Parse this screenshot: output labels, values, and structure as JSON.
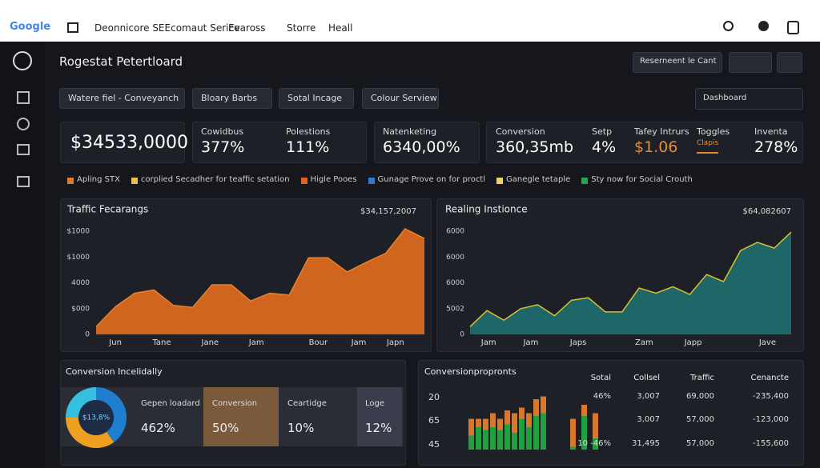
{
  "topbar": {
    "logo": "Google",
    "nav": [
      "Deonnicore SEEcomaut Serice",
      "Evaross",
      "Storre",
      "Heall"
    ]
  },
  "header": {
    "title": "Rogestat Petertloard",
    "button": "Reserneent le Cant"
  },
  "filters": [
    "Watere fiel - Conveyanch",
    "Bloary Barbs",
    "Sotal Incage",
    "Colour Serview"
  ],
  "search": "Dashboard",
  "kpi_total": "$34533,0000",
  "kpis": [
    {
      "label": "Cowidbus",
      "value": "377%"
    },
    {
      "label": "Polestions",
      "value": "111%"
    },
    {
      "label": "Natenketing",
      "value": "6340,00%"
    },
    {
      "label": "Conversion",
      "value": "360,35mb"
    },
    {
      "label": "Setp",
      "value": "4%"
    },
    {
      "label": "Tafey Intrurs",
      "value": "$1.06"
    },
    {
      "label": "Toggles",
      "value": "Clapis"
    },
    {
      "label": "Inventa",
      "value": "278%"
    }
  ],
  "legend": [
    {
      "name": "Apling STX",
      "color": "#e07a2a"
    },
    {
      "name": "corplied Secadher for teaffic setation",
      "color": "#e8c04a"
    },
    {
      "name": "Higle Pooes",
      "color": "#e0621e"
    },
    {
      "name": "Gunage Prove on for proctl",
      "color": "#2a7ad0"
    },
    {
      "name": "Ganegle tetaple",
      "color": "#f0d070"
    },
    {
      "name": "Sty now for Social Crouth",
      "color": "#2aa050"
    }
  ],
  "chart_data": [
    {
      "type": "area",
      "title": "Traffic Fecarangs",
      "total": "$34,157,2007",
      "color": "#d9691f",
      "line_color": "#e8822e",
      "x": [
        0,
        1,
        2,
        3,
        4,
        5,
        6,
        7,
        8,
        9,
        10,
        11,
        12,
        13,
        14,
        15,
        16,
        17
      ],
      "values": [
        600,
        2150,
        3200,
        3450,
        2250,
        2100,
        3850,
        3850,
        2600,
        3200,
        3050,
        5950,
        5950,
        4850,
        5600,
        6300,
        8200,
        7450
      ],
      "xlim": [
        0,
        17
      ],
      "xticks": [
        {
          "value": 1,
          "label": "Jun"
        },
        {
          "value": 3.4,
          "label": "Tane"
        },
        {
          "value": 5.9,
          "label": "Jane"
        },
        {
          "value": 8.3,
          "label": "Jam"
        },
        {
          "value": 11.5,
          "label": "Bour"
        },
        {
          "value": 13.6,
          "label": "Jam"
        },
        {
          "value": 15.5,
          "label": "Japn"
        }
      ],
      "ylim": [
        0,
        8200
      ],
      "yticks": [
        {
          "value": 8000,
          "label": "$1000"
        },
        {
          "value": 6000,
          "label": "$1000"
        },
        4000,
        {
          "value": 2000,
          "label": "$000"
        },
        0
      ],
      "grid": false
    },
    {
      "type": "area",
      "title": "Realing Instionce",
      "total": "$64,082607",
      "color": "#1f6a6a",
      "line_color": "#d8c030",
      "x": [
        0,
        1,
        2,
        3,
        4,
        5,
        6,
        7,
        8,
        9,
        10,
        11,
        12,
        13,
        14,
        15,
        16,
        17,
        18,
        19
      ],
      "values": [
        600,
        1850,
        1100,
        2000,
        2300,
        1450,
        2650,
        2850,
        1750,
        1750,
        3600,
        3200,
        3700,
        3100,
        4650,
        4100,
        6500,
        7150,
        6700,
        7950
      ],
      "xlim": [
        0,
        19
      ],
      "xticks": [
        {
          "value": 1.1,
          "label": "Jam"
        },
        {
          "value": 3.6,
          "label": "Jam"
        },
        {
          "value": 6.4,
          "label": "Japs"
        },
        {
          "value": 10.3,
          "label": "Zam"
        },
        {
          "value": 13.2,
          "label": "Japp"
        },
        {
          "value": 17.6,
          "label": "Jave"
        }
      ],
      "ylim": [
        0,
        8200
      ],
      "yticks": [
        {
          "value": 8000,
          "label": "6000"
        },
        {
          "value": 6000,
          "label": "6000"
        },
        {
          "value": 4000,
          "label": "6000"
        },
        {
          "value": 2000,
          "label": "5002"
        },
        0
      ],
      "grid": false
    },
    {
      "type": "pie",
      "center_label": "$13,8%",
      "values": [
        40,
        35,
        25
      ],
      "colors": [
        "#1e7fd0",
        "#f0a020",
        "#35c0e0"
      ]
    },
    {
      "type": "bar",
      "categories": [
        null,
        null,
        null,
        null,
        null,
        null,
        null,
        null,
        null,
        null,
        null,
        null,
        null,
        null
      ],
      "ylim": [
        0,
        100
      ],
      "series": [
        {
          "color": "#22a040",
          "values": [
            25,
            40,
            35,
            40,
            35,
            45,
            30,
            55,
            40,
            60,
            65,
            5,
            60,
            20
          ]
        },
        {
          "color": "#d9782a",
          "values": [
            30,
            15,
            20,
            25,
            20,
            25,
            35,
            20,
            25,
            30,
            30,
            50,
            20,
            45
          ]
        }
      ]
    }
  ],
  "conversion_panel": {
    "title": "Conversion Incelidally",
    "cards": [
      {
        "label": "Gepen loadard",
        "value": "462%"
      },
      {
        "label": "Conversion",
        "value": "50%"
      },
      {
        "label": "Ceartidge",
        "value": "10%"
      },
      {
        "label": "Loge",
        "value": "12%"
      }
    ]
  },
  "table": {
    "title": "Conversionpropronts",
    "header": [
      "Sotal",
      "Collsel",
      "Traffic",
      "Cenancte"
    ],
    "row_labels": [
      "20",
      "65",
      "45"
    ],
    "rows": [
      [
        "46%",
        "3,007",
        "69,000",
        "-235,400"
      ],
      [
        "",
        "3,007",
        "57,000",
        "-123,000"
      ],
      [
        "10 -46%",
        "31,495",
        "57,000",
        "-155,600"
      ]
    ]
  }
}
